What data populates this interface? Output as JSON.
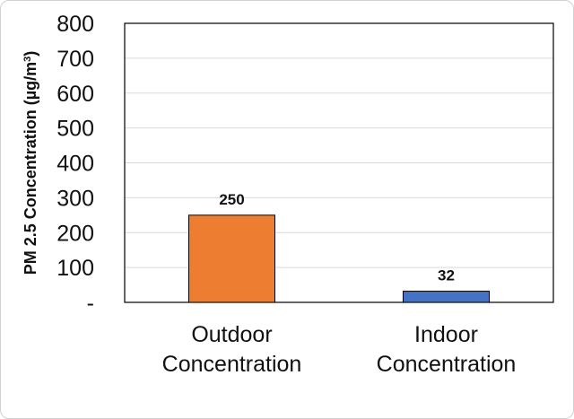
{
  "chart_data": {
    "type": "bar",
    "categories": [
      "Outdoor Concentration",
      "Indoor Concentration"
    ],
    "category_lines": [
      [
        "Outdoor",
        "Concentration"
      ],
      [
        "Indoor",
        "Concentration"
      ]
    ],
    "values": [
      250,
      32
    ],
    "data_labels": [
      "250",
      "32"
    ],
    "bar_colors": [
      "#ed7d31",
      "#4472c4"
    ],
    "ylabel_main": "PM 2.5 Concentration (µg/m",
    "ylabel_sup": "3",
    "ylabel_end": ")",
    "ylim": [
      0,
      800
    ],
    "yticks": [
      0,
      100,
      200,
      300,
      400,
      500,
      600,
      700,
      800
    ],
    "ytick_labels": [
      "-",
      "100",
      "200",
      "300",
      "400",
      "500",
      "600",
      "700",
      "800"
    ],
    "grid": true,
    "legend": "none"
  }
}
